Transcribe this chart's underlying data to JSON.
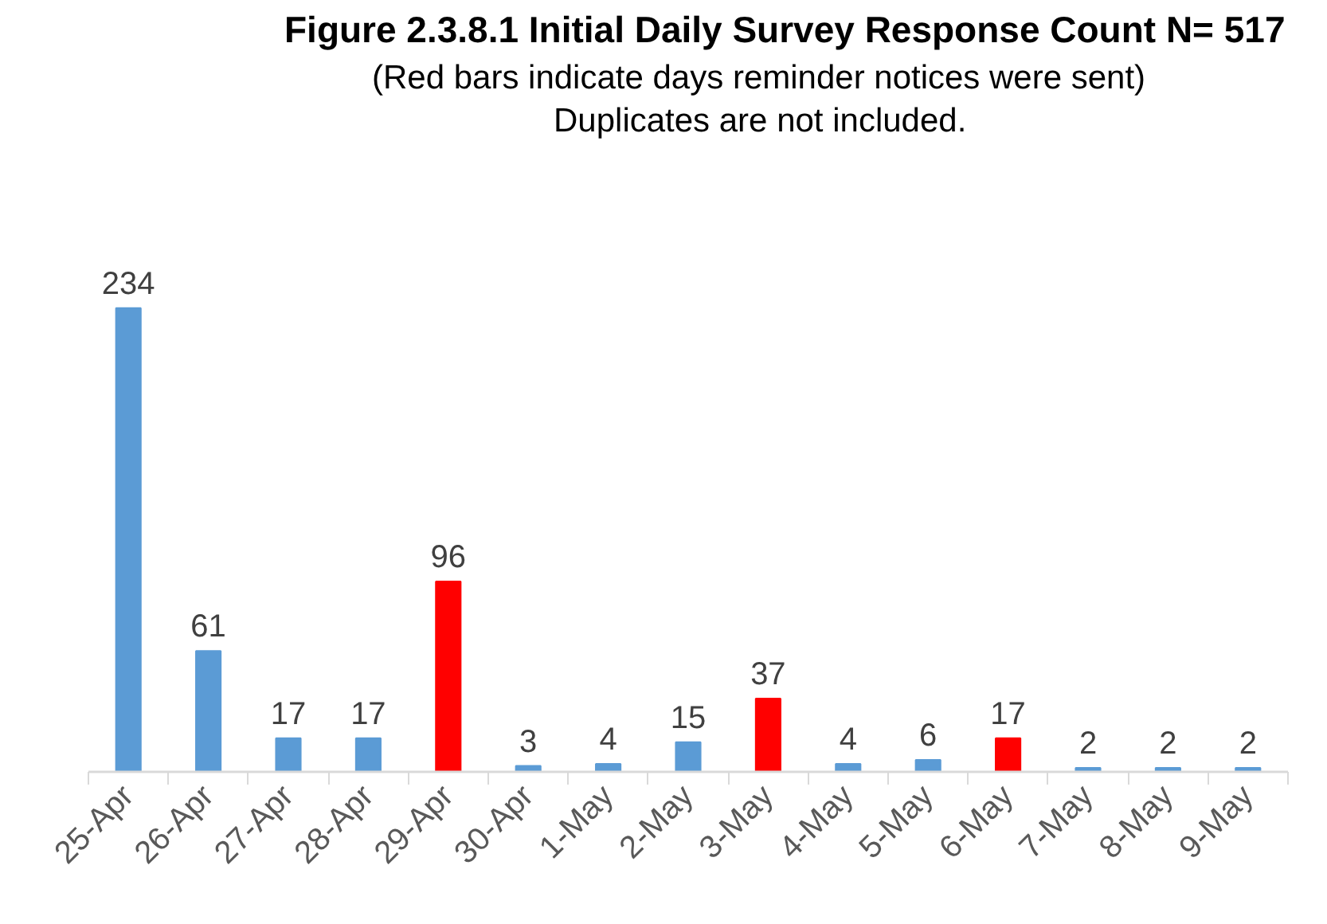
{
  "chart_data": {
    "type": "bar",
    "title": "Figure 2.3.8.1 Initial Daily Survey Response Count N= 517",
    "subtitle": "(Red bars indicate days reminder notices were sent)",
    "annotations": [
      "Duplicates are not included."
    ],
    "categories": [
      "25-Apr",
      "26-Apr",
      "27-Apr",
      "28-Apr",
      "29-Apr",
      "30-Apr",
      "1-May",
      "2-May",
      "3-May",
      "4-May",
      "5-May",
      "6-May",
      "7-May",
      "8-May",
      "9-May"
    ],
    "values": [
      234,
      61,
      17,
      17,
      96,
      3,
      4,
      15,
      37,
      4,
      6,
      17,
      2,
      2,
      2
    ],
    "colors": [
      "#5b9bd5",
      "#5b9bd5",
      "#5b9bd5",
      "#5b9bd5",
      "#ff0000",
      "#5b9bd5",
      "#5b9bd5",
      "#5b9bd5",
      "#ff0000",
      "#5b9bd5",
      "#5b9bd5",
      "#ff0000",
      "#5b9bd5",
      "#5b9bd5",
      "#5b9bd5"
    ],
    "data_labels": true,
    "grid": false,
    "tick_labels": "x"
  }
}
